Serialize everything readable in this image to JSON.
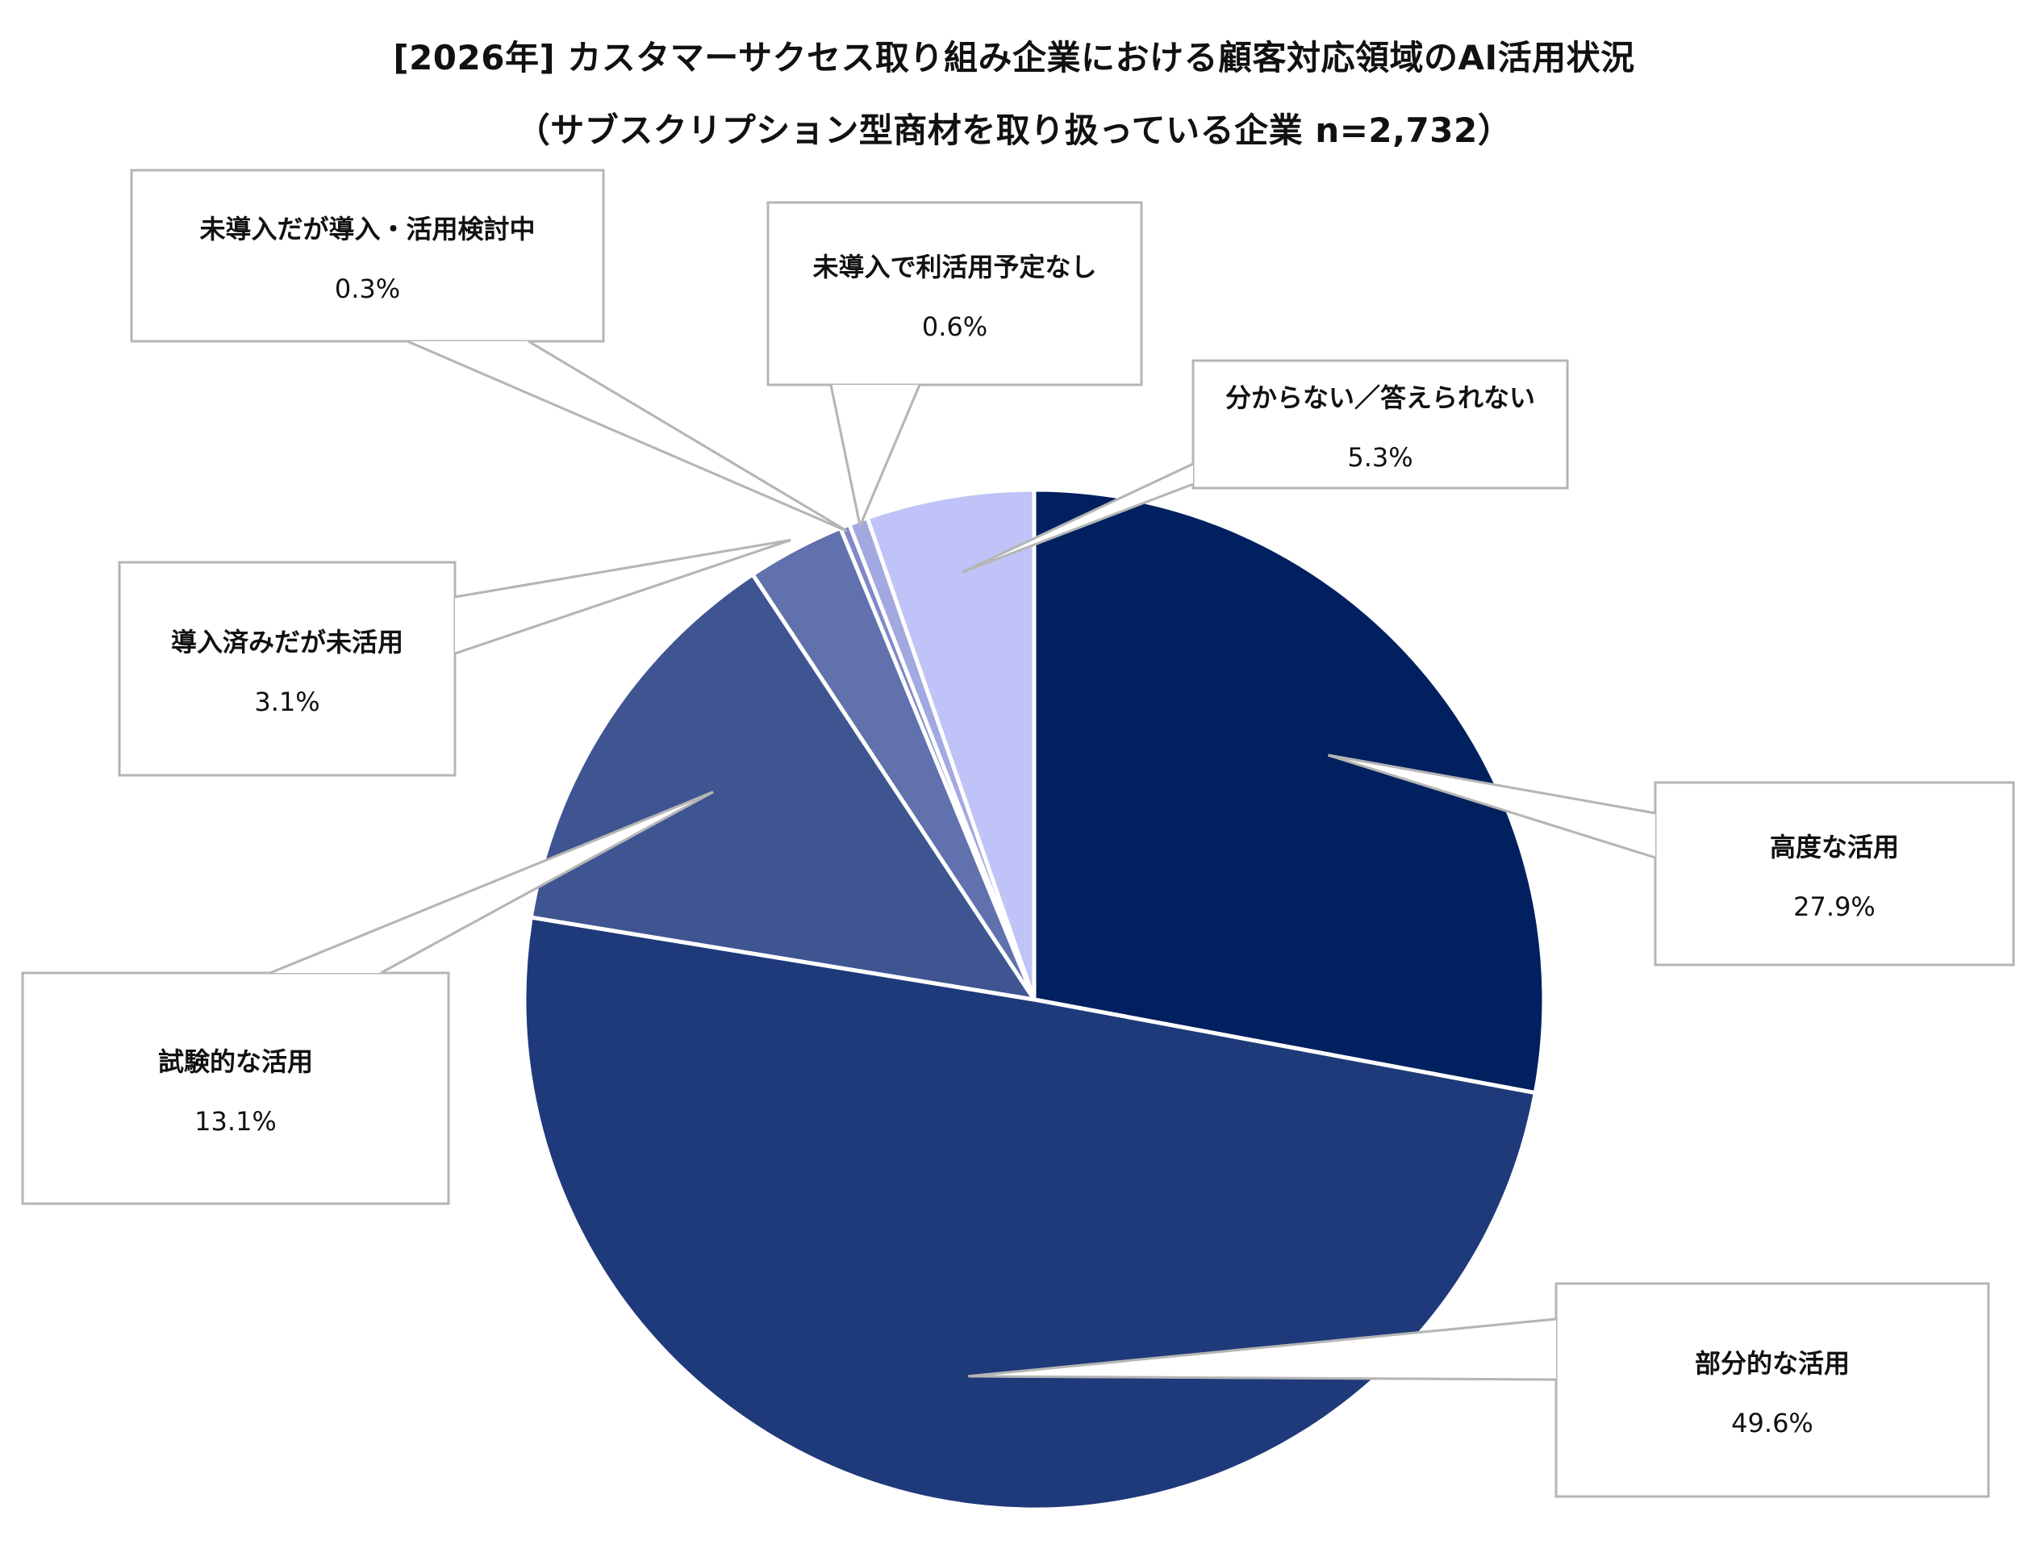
{
  "chart_data": {
    "type": "pie",
    "title": "[2026年] カスタマーサクセス取り組み企業における顧客対応領域のAI活用状況",
    "subtitle": "（サブスクリプション型商材を取り扱っている企業 n=2,732）",
    "unit": "%",
    "start_angle_deg": 0,
    "direction": "clockwise",
    "slices": [
      {
        "label": "高度な活用",
        "value": 27.9,
        "display": "27.9%",
        "color": "#01205f"
      },
      {
        "label": "部分的な活用",
        "value": 49.6,
        "display": "49.6%",
        "color": "#1f3a7a"
      },
      {
        "label": "試験的な活用",
        "value": 13.1,
        "display": "13.1%",
        "color": "#3f5592"
      },
      {
        "label": "導入済みだが未活用",
        "value": 3.1,
        "display": "3.1%",
        "color": "#6171ad"
      },
      {
        "label": "未導入だが導入・活用検討中",
        "value": 0.3,
        "display": "0.3%",
        "color": "#8088c8"
      },
      {
        "label": "未導入で利活用予定なし",
        "value": 0.6,
        "display": "0.6%",
        "color": "#a2a8e0"
      },
      {
        "label": "分からない／答えられない",
        "value": 5.3,
        "display": "5.3%",
        "color": "#c0c3f7"
      }
    ]
  }
}
